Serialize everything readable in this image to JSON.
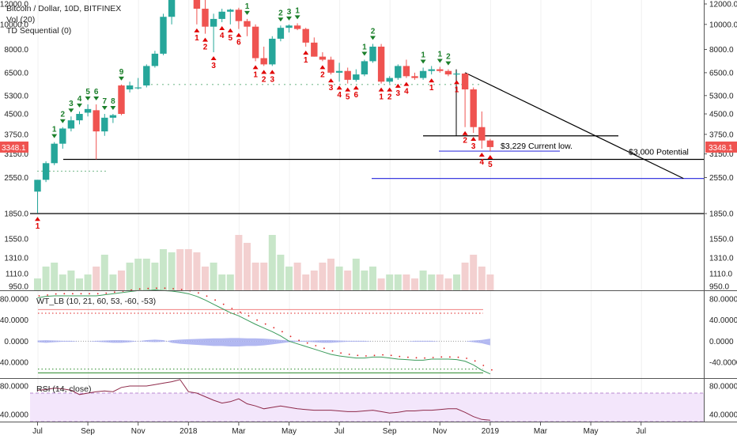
{
  "header": {
    "symbol_line": "Bitcoin / Dollar, 10D, BITFINEX",
    "vol_label": "Vol (20)",
    "td_label": "TD Sequential (0)"
  },
  "panes": {
    "wt_label": "WT_LB (10, 21, 60, 53, -60, -53)",
    "rsi_label": "RSI (14, close)"
  },
  "annotations": {
    "current_low": "$3,229 Current low.",
    "potential": "$3,000 Potential"
  },
  "price_badge": "3348.1",
  "colors": {
    "up": "#26a69a",
    "down": "#ef5350",
    "td_up": "#1b7f2a",
    "td_down": "#e00000",
    "vol_up": "#c8e6c9",
    "vol_down": "#f3d0d0",
    "wt_fill": "#aab0f0",
    "rsi_band": "#f3e6fb",
    "rsi_line": "#8e2a4a",
    "blue_line": "#3c3ce0"
  },
  "chart_data": [
    {
      "type": "candlestick",
      "title": "Bitcoin / Dollar, 10D, BITFINEX",
      "scale": "log",
      "y_ticks": [
        "12000.0",
        "10000.0",
        "8000.0",
        "6500.0",
        "5300.0",
        "4500.0",
        "3750.0",
        "3150.0",
        "2550.0",
        "1850.0"
      ],
      "y_tick_values": [
        12000,
        10000,
        8000,
        6500,
        5300,
        4500,
        3750,
        3150,
        2550,
        1850
      ],
      "x_ticks": [
        "Jul",
        "Sep",
        "Nov",
        "2018",
        "Mar",
        "May",
        "Jul",
        "Sep",
        "Nov",
        "2019",
        "Mar",
        "May",
        "Jul"
      ],
      "candles": [
        {
          "o": 2250,
          "h": 2500,
          "l": 1860,
          "c": 2500
        },
        {
          "o": 2500,
          "h": 2950,
          "l": 2450,
          "c": 2900
        },
        {
          "o": 2900,
          "h": 3500,
          "l": 2850,
          "c": 3450
        },
        {
          "o": 3450,
          "h": 4000,
          "l": 3300,
          "c": 3950
        },
        {
          "o": 3950,
          "h": 4400,
          "l": 3850,
          "c": 4250
        },
        {
          "o": 4250,
          "h": 4600,
          "l": 4100,
          "c": 4500
        },
        {
          "o": 4550,
          "h": 4900,
          "l": 4400,
          "c": 4700
        },
        {
          "o": 4650,
          "h": 4900,
          "l": 3000,
          "c": 3850
        },
        {
          "o": 3850,
          "h": 4500,
          "l": 3700,
          "c": 4350
        },
        {
          "o": 4350,
          "h": 4500,
          "l": 4150,
          "c": 4450
        },
        {
          "o": 5800,
          "h": 5850,
          "l": 4450,
          "c": 4500
        },
        {
          "o": 5600,
          "h": 6000,
          "l": 5450,
          "c": 5800
        },
        {
          "o": 5700,
          "h": 6200,
          "l": 5600,
          "c": 5700
        },
        {
          "o": 5800,
          "h": 7000,
          "l": 5700,
          "c": 6900
        },
        {
          "o": 6900,
          "h": 7900,
          "l": 6800,
          "c": 7700
        },
        {
          "o": 7700,
          "h": 11000,
          "l": 7600,
          "c": 10700
        },
        {
          "o": 10700,
          "h": 17000,
          "l": 10000,
          "c": 15000
        },
        {
          "o": 15000,
          "h": 17500,
          "l": 13000,
          "c": 14000
        },
        {
          "o": 14000,
          "h": 17000,
          "l": 12500,
          "c": 13500
        },
        {
          "o": 13500,
          "h": 14000,
          "l": 10000,
          "c": 11500
        },
        {
          "o": 11500,
          "h": 12800,
          "l": 9200,
          "c": 9800
        },
        {
          "o": 9800,
          "h": 11000,
          "l": 7800,
          "c": 10500
        },
        {
          "o": 10500,
          "h": 11500,
          "l": 10200,
          "c": 11200
        },
        {
          "o": 11200,
          "h": 11500,
          "l": 10000,
          "c": 11400
        },
        {
          "o": 11400,
          "h": 11600,
          "l": 9600,
          "c": 10300
        },
        {
          "o": 10300,
          "h": 10500,
          "l": 9000,
          "c": 9800
        },
        {
          "o": 9800,
          "h": 10000,
          "l": 7200,
          "c": 7400
        },
        {
          "o": 7400,
          "h": 8200,
          "l": 6900,
          "c": 7000
        },
        {
          "o": 7000,
          "h": 9000,
          "l": 6900,
          "c": 8800
        },
        {
          "o": 8800,
          "h": 9900,
          "l": 8600,
          "c": 9700
        },
        {
          "o": 9700,
          "h": 10000,
          "l": 9300,
          "c": 9900
        },
        {
          "o": 9900,
          "h": 10100,
          "l": 9500,
          "c": 9600
        },
        {
          "o": 9600,
          "h": 9700,
          "l": 8200,
          "c": 8500
        },
        {
          "o": 8500,
          "h": 8900,
          "l": 7500,
          "c": 7500
        },
        {
          "o": 7500,
          "h": 7800,
          "l": 7200,
          "c": 7300
        },
        {
          "o": 7300,
          "h": 7500,
          "l": 6400,
          "c": 6500
        },
        {
          "o": 6500,
          "h": 7100,
          "l": 6000,
          "c": 6600
        },
        {
          "o": 6600,
          "h": 6800,
          "l": 5900,
          "c": 6100
        },
        {
          "o": 6100,
          "h": 6700,
          "l": 6000,
          "c": 6400
        },
        {
          "o": 6400,
          "h": 7300,
          "l": 6300,
          "c": 7200
        },
        {
          "o": 7200,
          "h": 8400,
          "l": 7100,
          "c": 8200
        },
        {
          "o": 8200,
          "h": 8400,
          "l": 5900,
          "c": 6000
        },
        {
          "o": 6000,
          "h": 6300,
          "l": 5900,
          "c": 6200
        },
        {
          "o": 6200,
          "h": 7000,
          "l": 6100,
          "c": 6900
        },
        {
          "o": 6900,
          "h": 7300,
          "l": 6200,
          "c": 6300
        },
        {
          "o": 6300,
          "h": 6500,
          "l": 6100,
          "c": 6200
        },
        {
          "o": 6200,
          "h": 6800,
          "l": 6100,
          "c": 6600
        },
        {
          "o": 6600,
          "h": 6900,
          "l": 6400,
          "c": 6700
        },
        {
          "o": 6700,
          "h": 6850,
          "l": 6500,
          "c": 6600
        },
        {
          "o": 6600,
          "h": 6700,
          "l": 6300,
          "c": 6400
        },
        {
          "o": 6400,
          "h": 6550,
          "l": 6300,
          "c": 6450
        },
        {
          "o": 6450,
          "h": 6500,
          "l": 4000,
          "c": 5600
        },
        {
          "o": 5600,
          "h": 5700,
          "l": 3800,
          "c": 4000
        },
        {
          "o": 4000,
          "h": 4600,
          "l": 3300,
          "c": 3550
        },
        {
          "o": 3550,
          "h": 3600,
          "l": 3229,
          "c": 3348
        }
      ],
      "td_labels": [
        {
          "i": 0,
          "t": "1",
          "side": "below"
        },
        {
          "i": 2,
          "t": "1",
          "side": "above"
        },
        {
          "i": 3,
          "t": "2",
          "side": "above"
        },
        {
          "i": 4,
          "t": "3",
          "side": "above"
        },
        {
          "i": 5,
          "t": "4",
          "side": "above"
        },
        {
          "i": 6,
          "t": "5",
          "side": "above"
        },
        {
          "i": 7,
          "t": "6",
          "side": "above"
        },
        {
          "i": 8,
          "t": "7",
          "side": "above"
        },
        {
          "i": 9,
          "t": "8",
          "side": "above"
        },
        {
          "i": 10,
          "t": "9",
          "side": "above"
        },
        {
          "i": 19,
          "t": "1",
          "side": "below"
        },
        {
          "i": 20,
          "t": "2",
          "side": "below"
        },
        {
          "i": 21,
          "t": "3",
          "side": "below"
        },
        {
          "i": 22,
          "t": "4",
          "side": "below"
        },
        {
          "i": 23,
          "t": "5",
          "side": "below"
        },
        {
          "i": 24,
          "t": "6",
          "side": "below"
        },
        {
          "i": 25,
          "t": "1",
          "side": "above"
        },
        {
          "i": 26,
          "t": "1",
          "side": "below"
        },
        {
          "i": 27,
          "t": "2",
          "side": "below"
        },
        {
          "i": 28,
          "t": "3",
          "side": "below"
        },
        {
          "i": 29,
          "t": "2",
          "side": "above"
        },
        {
          "i": 30,
          "t": "3",
          "side": "above"
        },
        {
          "i": 31,
          "t": "1",
          "side": "above"
        },
        {
          "i": 32,
          "t": "1",
          "side": "below"
        },
        {
          "i": 34,
          "t": "2",
          "side": "below"
        },
        {
          "i": 35,
          "t": "3",
          "side": "below"
        },
        {
          "i": 36,
          "t": "4",
          "side": "below"
        },
        {
          "i": 37,
          "t": "5",
          "side": "below"
        },
        {
          "i": 38,
          "t": "6",
          "side": "below"
        },
        {
          "i": 39,
          "t": "1",
          "side": "above"
        },
        {
          "i": 40,
          "t": "2",
          "side": "above"
        },
        {
          "i": 41,
          "t": "1",
          "side": "below"
        },
        {
          "i": 42,
          "t": "2",
          "side": "below"
        },
        {
          "i": 43,
          "t": "3",
          "side": "below"
        },
        {
          "i": 44,
          "t": "4",
          "side": "below"
        },
        {
          "i": 46,
          "t": "1",
          "side": "above"
        },
        {
          "i": 47,
          "t": "1",
          "side": "below"
        },
        {
          "i": 48,
          "t": "1",
          "side": "above"
        },
        {
          "i": 49,
          "t": "2",
          "side": "above"
        },
        {
          "i": 50,
          "t": "1",
          "side": "below"
        },
        {
          "i": 51,
          "t": "2",
          "side": "below"
        },
        {
          "i": 52,
          "t": "3",
          "side": "below"
        },
        {
          "i": 53,
          "t": "4",
          "side": "below"
        },
        {
          "i": 54,
          "t": "5",
          "side": "below"
        }
      ],
      "levels": [
        {
          "price": 1850,
          "color": "#000000"
        },
        {
          "price": 3000,
          "color": "#000000"
        },
        {
          "price": 3229,
          "color": "#3c3ce0"
        },
        {
          "price": 3700,
          "color": "#000000"
        },
        {
          "price": 2530,
          "color": "#3c3ce0"
        }
      ],
      "trendline": [
        {
          "i": 51,
          "p": 6500
        },
        {
          "i": 78,
          "p": 2530
        }
      ],
      "volume_ticks": [
        "1550.0",
        "1310.0",
        "1110.0",
        "950.0"
      ],
      "volume": [
        1050,
        1200,
        1250,
        1100,
        1150,
        1050,
        1100,
        1200,
        1350,
        1100,
        1150,
        1250,
        1300,
        1300,
        1250,
        1420,
        1380,
        1420,
        1420,
        1380,
        1200,
        1250,
        1100,
        1100,
        1600,
        1500,
        1250,
        1250,
        1600,
        1350,
        1200,
        1250,
        1100,
        1150,
        1250,
        1300,
        1200,
        1150,
        1300,
        1150,
        1200,
        1050,
        1100,
        1100,
        1100,
        1050,
        1150,
        1100,
        1100,
        1050,
        1100,
        1250,
        1350,
        1200,
        1100
      ]
    },
    {
      "type": "line",
      "title": "WT_LB (10, 21, 60, 53, -60, -53)",
      "y_ticks": [
        "80.0000",
        "40.0000",
        "0.0000",
        "-40.0000"
      ],
      "ylim": [
        -70,
        95
      ],
      "reference_lines": [
        60,
        53,
        -53,
        -60
      ],
      "wt1": [
        82,
        85,
        86,
        86,
        86,
        86,
        86,
        86,
        88,
        90,
        92,
        94,
        96,
        96,
        97,
        96,
        95,
        93,
        90,
        85,
        78,
        70,
        62,
        54,
        48,
        40,
        32,
        25,
        18,
        10,
        0,
        -5,
        -10,
        -15,
        -20,
        -25,
        -28,
        -30,
        -32,
        -32,
        -30,
        -30,
        -32,
        -34,
        -35,
        -36,
        -36,
        -34,
        -34,
        -34,
        -35,
        -38,
        -45,
        -55,
        -62
      ],
      "fill": [
        -2,
        -3,
        -2,
        -1,
        -1,
        0,
        0,
        -1,
        -2,
        -3,
        -3,
        -2,
        0,
        2,
        3,
        2,
        -3,
        -5,
        -6,
        -7,
        -8,
        -9,
        -9,
        -10,
        -10,
        -9,
        -9,
        -8,
        -6,
        -4,
        -2,
        -1,
        -1,
        -2,
        -3,
        -3,
        -2,
        -1,
        -1,
        -1,
        0,
        0,
        0,
        0,
        0,
        -1,
        -1,
        -1,
        0,
        0,
        0,
        0,
        -2,
        -4,
        -8
      ]
    },
    {
      "type": "line",
      "title": "RSI (14, close)",
      "y_ticks": [
        "80.0000",
        "40.0000"
      ],
      "ylim": [
        30,
        90
      ],
      "band": [
        30,
        70
      ],
      "values": [
        74,
        75,
        77,
        76,
        74,
        68,
        70,
        72,
        73,
        72,
        78,
        80,
        80,
        80,
        82,
        84,
        86,
        89,
        72,
        70,
        65,
        60,
        56,
        58,
        62,
        55,
        52,
        48,
        50,
        52,
        50,
        48,
        47,
        46,
        46,
        46,
        45,
        44,
        44,
        45,
        46,
        44,
        42,
        43,
        45,
        45,
        46,
        46,
        47,
        48,
        48,
        43,
        37,
        33,
        32
      ]
    }
  ]
}
